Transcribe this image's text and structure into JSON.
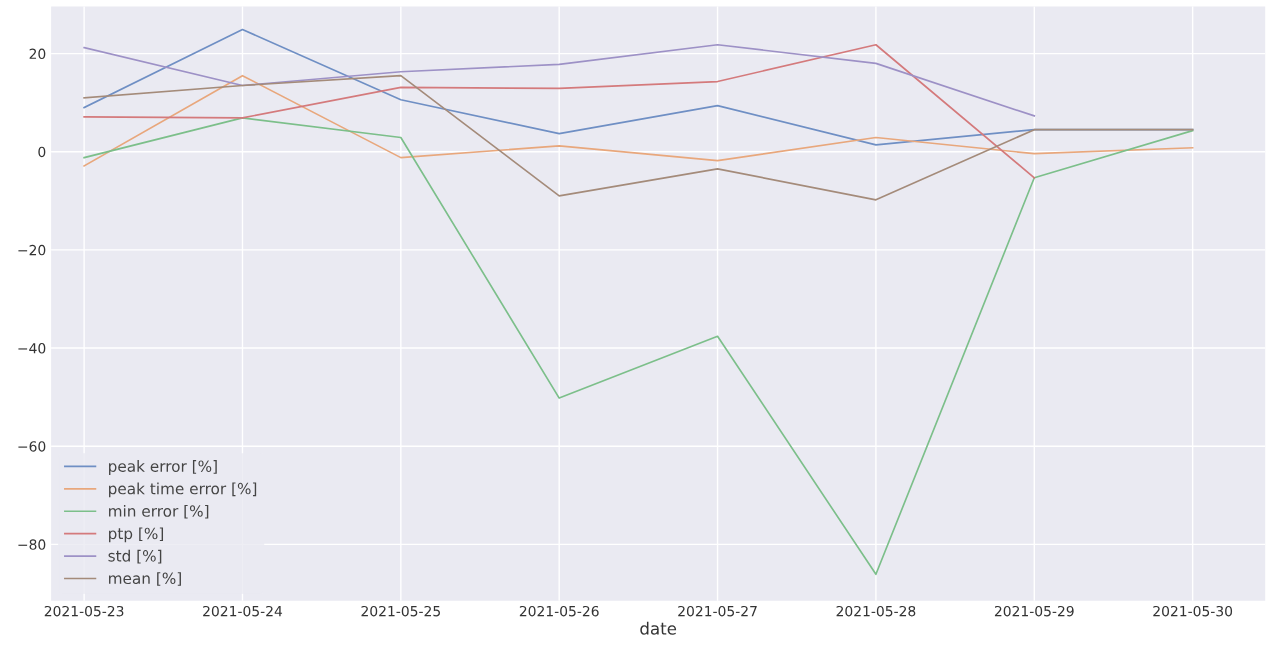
{
  "chart_data": {
    "type": "line",
    "xlabel": "date",
    "x": [
      "2021-05-23",
      "2021-05-24",
      "2021-05-25",
      "2021-05-26",
      "2021-05-27",
      "2021-05-28",
      "2021-05-29",
      "2021-05-30"
    ],
    "xticks": [
      {
        "value": "2021-05-23",
        "label": "2021-05-23"
      },
      {
        "value": "2021-05-24",
        "label": "2021-05-24"
      },
      {
        "value": "2021-05-25",
        "label": "2021-05-25"
      },
      {
        "value": "2021-05-26",
        "label": "2021-05-26"
      },
      {
        "value": "2021-05-27",
        "label": "2021-05-27"
      },
      {
        "value": "2021-05-28",
        "label": "2021-05-28"
      },
      {
        "value": "2021-05-29",
        "label": "2021-05-29"
      },
      {
        "value": "2021-05-30",
        "label": "2021-05-30"
      }
    ],
    "xlim": [
      "2021-05-22T19:00",
      "2021-05-30T11:00"
    ],
    "ylim": [
      -91.5,
      29.6
    ],
    "yticks": [
      -80,
      -60,
      -40,
      -20,
      0,
      20
    ],
    "grid": true,
    "legend": "bottom left",
    "series": [
      {
        "name": "peak error [%]",
        "color": "#6f8fc4",
        "values": [
          9.0,
          24.9,
          10.6,
          3.7,
          9.4,
          1.4,
          4.5,
          4.5
        ]
      },
      {
        "name": "peak time error [%]",
        "color": "#e8a77c",
        "values": [
          -2.9,
          15.5,
          -1.2,
          1.2,
          -1.8,
          2.9,
          -0.4,
          0.8
        ]
      },
      {
        "name": "min error [%]",
        "color": "#7cbf8a",
        "values": [
          -1.2,
          6.9,
          2.9,
          -50.2,
          -37.6,
          -86.1,
          -5.3,
          4.3
        ]
      },
      {
        "name": "ptp [%]",
        "color": "#d47a7c",
        "values": [
          7.1,
          6.9,
          13.1,
          12.9,
          14.3,
          21.8,
          -5.3,
          null
        ]
      },
      {
        "name": "std [%]",
        "color": "#9d91c6",
        "values": [
          21.2,
          13.5,
          16.3,
          17.8,
          21.8,
          18.0,
          7.3,
          null
        ]
      },
      {
        "name": "mean [%]",
        "color": "#a48b7a",
        "values": [
          11.0,
          13.5,
          15.5,
          -9.0,
          -3.5,
          -9.8,
          4.5,
          4.5
        ]
      }
    ]
  }
}
